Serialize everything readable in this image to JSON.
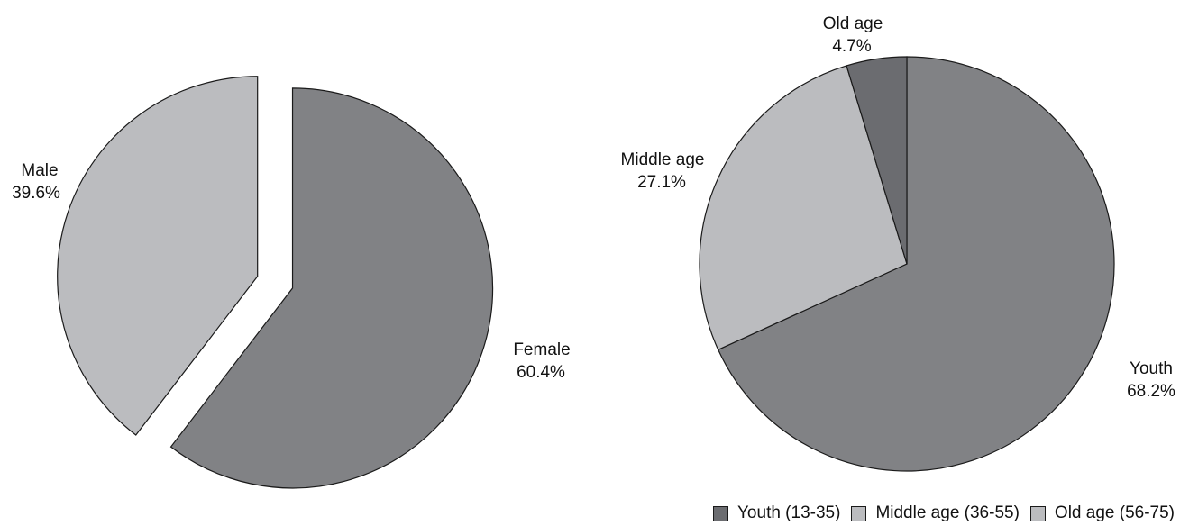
{
  "chart_data": [
    {
      "type": "pie",
      "exploded": true,
      "slices": [
        {
          "label": "Female",
          "percent_label": "60.4%",
          "value": 60.4,
          "color": "#818285"
        },
        {
          "label": "Male",
          "percent_label": "39.6%",
          "value": 39.6,
          "color": "#bbbcbf"
        }
      ]
    },
    {
      "type": "pie",
      "slices": [
        {
          "label": "Youth",
          "percent_label": "68.2%",
          "value": 68.2,
          "color": "#818285"
        },
        {
          "label": "Middle age",
          "percent_label": "27.1%",
          "value": 27.1,
          "color": "#bbbcbf"
        },
        {
          "label": "Old age",
          "percent_label": "4.7%",
          "value": 4.7,
          "color": "#6b6c70"
        }
      ],
      "legend": {
        "placement": "bottom-right",
        "items": [
          {
            "label": "Youth (13-35)",
            "color": "#6b6c70"
          },
          {
            "label": "Middle age (36-55)",
            "color": "#bbbcbf"
          },
          {
            "label": "Old age (56-75)",
            "color": "#bbbcbf"
          }
        ]
      }
    }
  ]
}
